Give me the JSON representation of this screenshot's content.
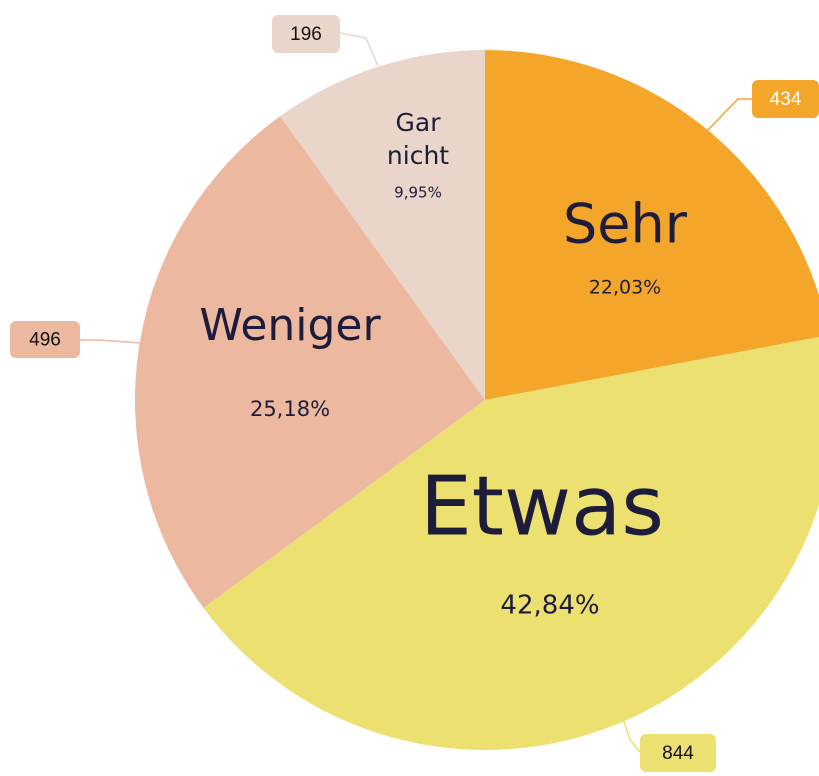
{
  "chart_data": {
    "type": "pie",
    "categories": [
      "Sehr",
      "Etwas",
      "Weniger",
      "Gar nicht"
    ],
    "values": [
      434,
      844,
      496,
      196
    ],
    "percent_labels": [
      "22,03%",
      "42,84%",
      "25,18%",
      "9,95%"
    ],
    "colors": [
      "#f4a62a",
      "#ebe070",
      "#ecb9a0",
      "#ead5ca"
    ],
    "callout_colors": [
      "#f4a62a",
      "#ebe070",
      "#ecb9a0",
      "#ead5ca"
    ]
  }
}
